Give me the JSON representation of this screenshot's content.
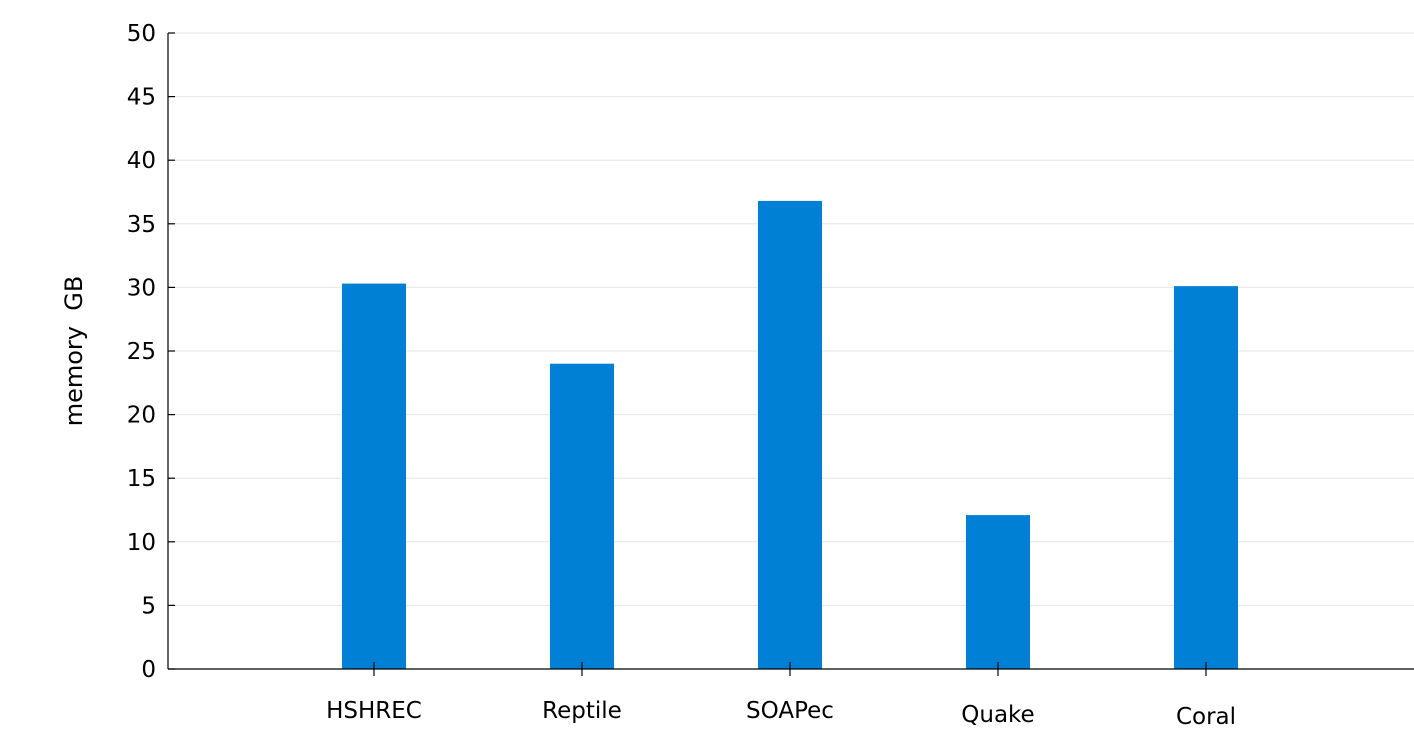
{
  "chart_data": {
    "type": "bar",
    "categories": [
      "HSHREC",
      "Reptile",
      "SOAPec",
      "Quake",
      "Coral"
    ],
    "values": [
      30.3,
      24.0,
      36.8,
      12.1,
      30.1
    ],
    "ylabel": "memory  GB",
    "xlabel": "",
    "ylim": [
      0,
      50
    ],
    "yticks": [
      0,
      5,
      10,
      15,
      20,
      25,
      30,
      35,
      40,
      45,
      50
    ],
    "grid": true,
    "bar_color": "#0080d5"
  }
}
